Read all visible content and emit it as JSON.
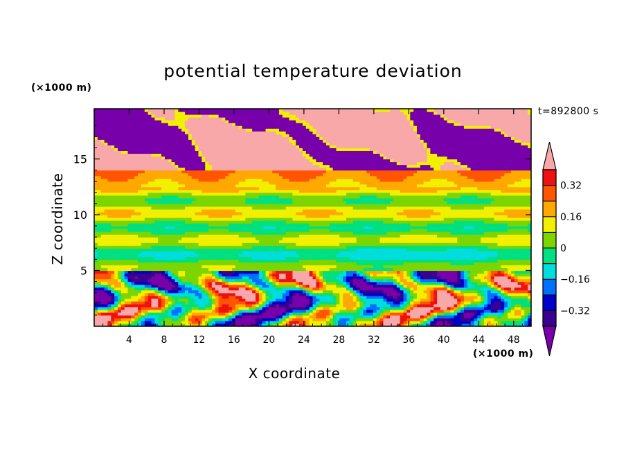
{
  "chart_data": {
    "type": "heatmap",
    "title": "potential temperature deviation",
    "xlabel": "X coordinate",
    "ylabel": "Z coordinate",
    "x_unit": "(×1000 m)",
    "y_unit": "(×1000 m)",
    "time_label": "t=892800 s",
    "xlim": [
      0,
      50
    ],
    "ylim": [
      0,
      19.5
    ],
    "x_ticks": [
      4,
      8,
      12,
      16,
      20,
      24,
      28,
      32,
      36,
      40,
      44,
      48
    ],
    "y_ticks": [
      5,
      10,
      15
    ],
    "colorbar": {
      "levels": [
        -0.4,
        -0.32,
        -0.24,
        -0.16,
        -0.08,
        0,
        0.08,
        0.16,
        0.24,
        0.32,
        0.4
      ],
      "tick_labels": [
        "0.32",
        "0.16",
        "0",
        "−0.16",
        "−0.32"
      ],
      "tick_values": [
        0.32,
        0.16,
        0,
        -0.16,
        -0.32
      ],
      "colors": [
        "#7700aa",
        "#3a0090",
        "#0000c8",
        "#0070ff",
        "#00dddd",
        "#00e080",
        "#7dd500",
        "#f0f000",
        "#ffa800",
        "#ff5500",
        "#ee1111",
        "#f8a8a8"
      ]
    }
  }
}
